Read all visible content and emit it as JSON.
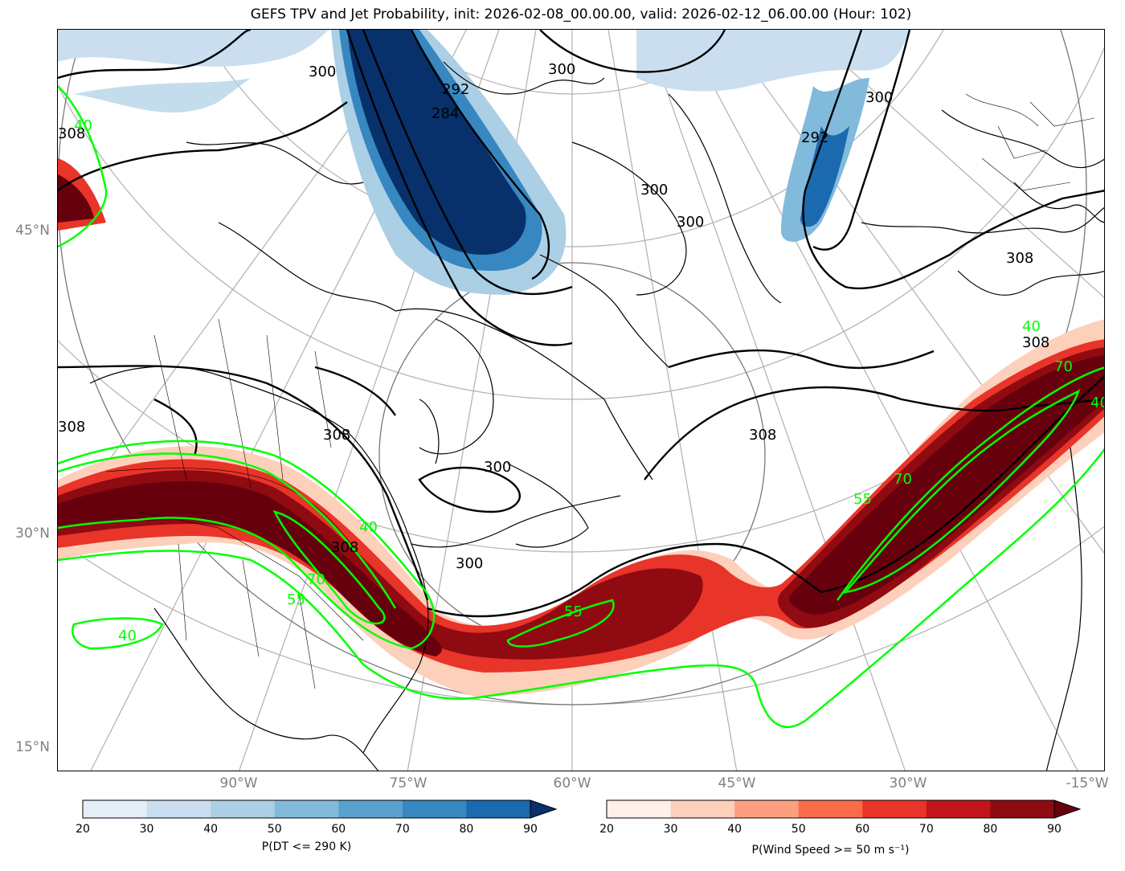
{
  "title": "GEFS TPV and Jet Probability, init: 2026-02-08_00.00.00, valid: 2026-02-12_06.00.00 (Hour: 102)",
  "lat_labels": [
    "45°N",
    "30°N",
    "15°N"
  ],
  "lon_labels": [
    "90°W",
    "75°W",
    "60°W",
    "45°W",
    "30°W",
    "-15°W"
  ],
  "theta_contour_labels": [
    "308",
    "300",
    "292",
    "284",
    "300",
    "300",
    "292",
    "300",
    "308",
    "308",
    "300",
    "308",
    "308",
    "300",
    "300",
    "308",
    "308"
  ],
  "jet_contour_labels": [
    "40",
    "40",
    "40",
    "55",
    "70",
    "40",
    "55",
    "70",
    "70",
    "55",
    "40"
  ],
  "colorbar_blue": {
    "label": "P(DT <= 290 K)",
    "ticks": [
      "20",
      "30",
      "40",
      "50",
      "60",
      "70",
      "80",
      "90"
    ],
    "colors": [
      "#e3eef9",
      "#cadef0",
      "#abcfe5",
      "#82badb",
      "#59a1cf",
      "#3787c0",
      "#1b69af",
      "#08306b"
    ]
  },
  "colorbar_red": {
    "label": "P(Wind Speed >= 50 m s⁻¹)",
    "ticks": [
      "20",
      "30",
      "40",
      "50",
      "60",
      "70",
      "80",
      "90"
    ],
    "colors": [
      "#fff0e8",
      "#fdd0bc",
      "#fc9f81",
      "#fa6b4a",
      "#e83429",
      "#c1151b",
      "#900a12",
      "#67000d"
    ]
  }
}
